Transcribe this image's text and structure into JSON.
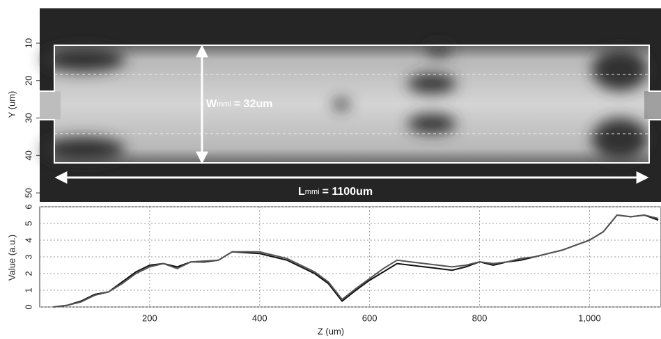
{
  "chart_data": [
    {
      "type": "heatmap",
      "ylabel": "Y (um)",
      "ylim": [
        0.7,
        52.4
      ],
      "yticks": [
        10,
        20,
        30,
        40,
        50
      ],
      "annotations": [
        {
          "symbol": "W",
          "subscript": "mmi",
          "text": "= 32um"
        },
        {
          "symbol": "L",
          "subscript": "mmi",
          "text": "= 1100um"
        }
      ]
    },
    {
      "type": "line",
      "xlabel": "Z (um)",
      "ylabel": "Value (a.u.)",
      "grid": true,
      "xlim": [
        0,
        1130
      ],
      "ylim": [
        0,
        6
      ],
      "xticks": [
        200,
        400,
        600,
        800,
        {
          "value": 1000,
          "label": "1,000"
        }
      ],
      "yticks": [
        0,
        1,
        2,
        3,
        4,
        5,
        6
      ],
      "x": [
        25,
        50,
        75,
        100,
        125,
        150,
        175,
        200,
        225,
        250,
        275,
        300,
        325,
        350,
        375,
        400,
        425,
        450,
        475,
        500,
        525,
        550,
        575,
        600,
        625,
        650,
        675,
        700,
        725,
        750,
        775,
        800,
        825,
        850,
        875,
        900,
        925,
        950,
        975,
        1000,
        1025,
        1050,
        1075,
        1100,
        1125
      ],
      "series": [
        {
          "color": "#111111",
          "values": [
            0,
            0.1,
            0.35,
            0.75,
            0.9,
            1.5,
            2.1,
            2.5,
            2.6,
            2.4,
            2.7,
            2.7,
            2.8,
            3.3,
            3.25,
            3.2,
            3.0,
            2.8,
            2.4,
            2.0,
            1.4,
            0.35,
            1.0,
            1.6,
            2.1,
            2.6,
            2.5,
            2.4,
            2.3,
            2.2,
            2.4,
            2.7,
            2.5,
            2.7,
            2.8,
            3.0,
            3.2,
            3.4,
            3.7,
            4.0,
            4.5,
            5.5,
            5.4,
            5.5,
            5.2
          ]
        },
        {
          "color": "#555555",
          "values": [
            0,
            0.1,
            0.3,
            0.7,
            0.9,
            1.4,
            2.0,
            2.4,
            2.6,
            2.3,
            2.7,
            2.75,
            2.8,
            3.3,
            3.3,
            3.3,
            3.1,
            2.9,
            2.5,
            2.1,
            1.5,
            0.45,
            1.1,
            1.7,
            2.3,
            2.8,
            2.7,
            2.6,
            2.5,
            2.4,
            2.5,
            2.7,
            2.6,
            2.7,
            2.9,
            3.0,
            3.2,
            3.4,
            3.7,
            4.0,
            4.5,
            5.5,
            5.4,
            5.5,
            5.3
          ]
        }
      ]
    }
  ]
}
